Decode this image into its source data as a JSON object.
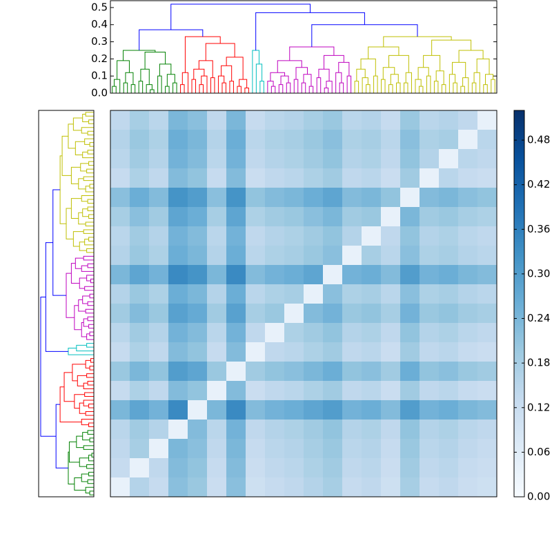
{
  "chart_data": {
    "type": "heatmap",
    "colormap": "Blues",
    "dendrogram": {
      "ylim": [
        0,
        0.54
      ],
      "yticks": [
        {
          "value": 0,
          "label": "0.0"
        },
        0.1,
        0.2,
        0.3,
        0.4,
        0.5
      ],
      "link_color": "#0000ff",
      "tree": [
        0.52,
        [
          0.37,
          {
            "color": "#008000",
            "tree": [
              0.25,
              [
                0.19,
                [
                  0.08,
                  [
                    0.04,
                    0,
                    0
                  ],
                  0
                ],
                [
                  0.12,
                  [
                    0.06,
                    0,
                    0
                  ],
                  [
                    0.05,
                    0,
                    0
                  ]
                ]
              ],
              [
                0.24,
                [
                  0.14,
                  [
                    0.07,
                    0,
                    0
                  ],
                  [
                    0.05,
                    0,
                    [
                      0.02,
                      0,
                      0
                    ]
                  ]
                ],
                [
                  0.17,
                  [
                    0.1,
                    0,
                    0
                  ],
                  [
                    0.11,
                    [
                      0.04,
                      0,
                      0
                    ],
                    [
                      0.06,
                      0,
                      0
                    ]
                  ]
                ]
              ]
            ]
          },
          {
            "color": "#ff0000",
            "tree": [
              0.33,
              [
                0.12,
                [
                  0.05,
                  0,
                  0
                ],
                0
              ],
              [
                0.29,
                [
                  0.19,
                  [
                    0.14,
                    [
                      0.08,
                      0,
                      0
                    ],
                    [
                      0.1,
                      [
                        0.05,
                        0,
                        0
                      ],
                      0
                    ]
                  ],
                  [
                    0.09,
                    0,
                    0
                  ]
                ],
                [
                  0.21,
                  [
                    0.16,
                    [
                      0.1,
                      0,
                      [
                        0.06,
                        0,
                        0
                      ]
                    ],
                    [
                      0.07,
                      0,
                      0
                    ]
                  ],
                  [
                    0.08,
                    [
                      0.04,
                      0,
                      0
                    ],
                    [
                      0.03,
                      0,
                      0
                    ]
                  ]
                ]
              ]
            ]
          }
        ],
        [
          0.47,
          {
            "color": "#00bfbf",
            "tree": [
              0.25,
              0,
              [
                0.17,
                0,
                [
                  0.07,
                  0,
                  0
                ]
              ]
            ]
          },
          [
            0.4,
            {
              "color": "#bf00bf",
              "tree": [
                0.27,
                [
                  0.19,
                  [
                    0.12,
                    [
                      0.07,
                      0,
                      [
                        0.04,
                        0,
                        0
                      ]
                    ],
                    [
                      0.1,
                      [
                        0.05,
                        0,
                        0
                      ],
                      [
                        0.06,
                        0,
                        0
                      ]
                    ]
                  ],
                  [
                    0.15,
                    [
                      0.08,
                      0,
                      0
                    ],
                    [
                      0.11,
                      [
                        0.06,
                        0,
                        0
                      ],
                      [
                        0.04,
                        0,
                        0
                      ]
                    ]
                  ]
                ],
                [
                  0.22,
                  [
                    0.14,
                    [
                      0.09,
                      0,
                      0
                    ],
                    [
                      0.07,
                      [
                        0.03,
                        0,
                        0
                      ],
                      0
                    ]
                  ],
                  [
                    0.18,
                    [
                      0.12,
                      0,
                      [
                        0.06,
                        0,
                        0
                      ]
                    ],
                    [
                      0.1,
                      0,
                      0
                    ]
                  ]
                ]
              ]
            },
            {
              "color": "#bfbf00",
              "tree": [
                0.33,
                [
                  0.27,
                  [
                    0.2,
                    [
                      0.14,
                      [
                        0.07,
                        0,
                        0
                      ],
                      [
                        0.09,
                        0,
                        [
                          0.05,
                          0,
                          0
                        ]
                      ]
                    ],
                    [
                      0.1,
                      0,
                      0
                    ]
                  ],
                  [
                    0.22,
                    [
                      0.15,
                      [
                        0.08,
                        0,
                        0
                      ],
                      [
                        0.11,
                        [
                          0.05,
                          0,
                          0
                        ],
                        [
                          0.06,
                          0,
                          0
                        ]
                      ]
                    ],
                    [
                      0.12,
                      [
                        0.06,
                        0,
                        0
                      ],
                      0
                    ]
                  ]
                ],
                [
                  0.31,
                  [
                    0.22,
                    [
                      0.15,
                      [
                        0.08,
                        0,
                        [
                          0.04,
                          0,
                          0
                        ]
                      ],
                      [
                        0.1,
                        0,
                        0
                      ]
                    ],
                    [
                      0.13,
                      [
                        0.07,
                        0,
                        0
                      ],
                      [
                        0.05,
                        0,
                        0
                      ]
                    ]
                  ],
                  [
                    0.25,
                    [
                      0.18,
                      [
                        0.11,
                        0,
                        [
                          0.06,
                          0,
                          0
                        ]
                      ],
                      [
                        0.09,
                        [
                          0.04,
                          0,
                          0
                        ],
                        0
                      ]
                    ],
                    [
                      0.2,
                      [
                        0.12,
                        [
                          0.06,
                          0,
                          0
                        ],
                        0
                      ],
                      [
                        0.11,
                        [
                          0.05,
                          0,
                          0
                        ],
                        [
                          0.08,
                          0,
                          0
                        ]
                      ]
                    ]
                  ]
                ]
              ]
            }
          ]
        ]
      ]
    },
    "matrix": [
      [
        0.14,
        0.18,
        0.15,
        0.24,
        0.22,
        0.14,
        0.24,
        0.13,
        0.15,
        0.16,
        0.18,
        0.2,
        0.15,
        0.16,
        0.13,
        0.2,
        0.15,
        0.16,
        0.14,
        0.04
      ],
      [
        0.16,
        0.2,
        0.17,
        0.26,
        0.24,
        0.16,
        0.26,
        0.15,
        0.17,
        0.18,
        0.2,
        0.22,
        0.17,
        0.18,
        0.15,
        0.22,
        0.17,
        0.18,
        0.04,
        0.15
      ],
      [
        0.15,
        0.19,
        0.16,
        0.25,
        0.23,
        0.15,
        0.25,
        0.14,
        0.16,
        0.17,
        0.19,
        0.21,
        0.16,
        0.17,
        0.14,
        0.21,
        0.16,
        0.04,
        0.15,
        0.14
      ],
      [
        0.13,
        0.17,
        0.14,
        0.23,
        0.21,
        0.13,
        0.23,
        0.12,
        0.14,
        0.15,
        0.17,
        0.19,
        0.14,
        0.15,
        0.12,
        0.19,
        0.04,
        0.15,
        0.13,
        0.12
      ],
      [
        0.22,
        0.26,
        0.23,
        0.32,
        0.3,
        0.22,
        0.32,
        0.21,
        0.23,
        0.24,
        0.26,
        0.28,
        0.23,
        0.24,
        0.21,
        0.04,
        0.23,
        0.24,
        0.22,
        0.21
      ],
      [
        0.18,
        0.22,
        0.19,
        0.28,
        0.26,
        0.18,
        0.28,
        0.17,
        0.19,
        0.2,
        0.22,
        0.24,
        0.19,
        0.2,
        0.04,
        0.24,
        0.19,
        0.2,
        0.18,
        0.17
      ],
      [
        0.15,
        0.19,
        0.16,
        0.25,
        0.23,
        0.15,
        0.25,
        0.14,
        0.16,
        0.17,
        0.19,
        0.21,
        0.16,
        0.04,
        0.14,
        0.21,
        0.16,
        0.17,
        0.15,
        0.14
      ],
      [
        0.16,
        0.2,
        0.17,
        0.26,
        0.24,
        0.16,
        0.26,
        0.15,
        0.17,
        0.18,
        0.2,
        0.22,
        0.04,
        0.18,
        0.15,
        0.22,
        0.17,
        0.18,
        0.16,
        0.15
      ],
      [
        0.24,
        0.28,
        0.25,
        0.34,
        0.32,
        0.24,
        0.34,
        0.23,
        0.25,
        0.26,
        0.28,
        0.04,
        0.25,
        0.26,
        0.23,
        0.3,
        0.25,
        0.26,
        0.24,
        0.23
      ],
      [
        0.16,
        0.2,
        0.17,
        0.26,
        0.24,
        0.16,
        0.26,
        0.15,
        0.17,
        0.18,
        0.04,
        0.22,
        0.17,
        0.18,
        0.15,
        0.22,
        0.17,
        0.18,
        0.16,
        0.15
      ],
      [
        0.19,
        0.23,
        0.2,
        0.29,
        0.27,
        0.19,
        0.29,
        0.18,
        0.2,
        0.04,
        0.23,
        0.25,
        0.2,
        0.21,
        0.18,
        0.25,
        0.2,
        0.21,
        0.19,
        0.18
      ],
      [
        0.15,
        0.19,
        0.16,
        0.25,
        0.23,
        0.15,
        0.25,
        0.14,
        0.04,
        0.17,
        0.19,
        0.21,
        0.16,
        0.17,
        0.14,
        0.21,
        0.16,
        0.17,
        0.15,
        0.14
      ],
      [
        0.13,
        0.17,
        0.14,
        0.23,
        0.21,
        0.13,
        0.23,
        0.04,
        0.14,
        0.15,
        0.17,
        0.19,
        0.14,
        0.15,
        0.12,
        0.19,
        0.14,
        0.15,
        0.13,
        0.12
      ],
      [
        0.2,
        0.24,
        0.21,
        0.3,
        0.28,
        0.2,
        0.04,
        0.19,
        0.21,
        0.22,
        0.24,
        0.26,
        0.21,
        0.22,
        0.19,
        0.26,
        0.21,
        0.22,
        0.2,
        0.19
      ],
      [
        0.13,
        0.17,
        0.14,
        0.23,
        0.21,
        0.04,
        0.23,
        0.12,
        0.14,
        0.15,
        0.17,
        0.19,
        0.14,
        0.15,
        0.12,
        0.19,
        0.14,
        0.15,
        0.13,
        0.12
      ],
      [
        0.24,
        0.28,
        0.25,
        0.34,
        0.04,
        0.24,
        0.34,
        0.23,
        0.25,
        0.26,
        0.28,
        0.3,
        0.25,
        0.26,
        0.23,
        0.3,
        0.25,
        0.26,
        0.24,
        0.23
      ],
      [
        0.15,
        0.19,
        0.16,
        0.04,
        0.23,
        0.15,
        0.25,
        0.14,
        0.16,
        0.17,
        0.19,
        0.21,
        0.16,
        0.17,
        0.14,
        0.21,
        0.16,
        0.17,
        0.15,
        0.14
      ],
      [
        0.14,
        0.18,
        0.04,
        0.24,
        0.22,
        0.14,
        0.24,
        0.13,
        0.15,
        0.16,
        0.18,
        0.2,
        0.15,
        0.16,
        0.13,
        0.2,
        0.15,
        0.16,
        0.14,
        0.13
      ],
      [
        0.13,
        0.04,
        0.14,
        0.23,
        0.21,
        0.13,
        0.23,
        0.12,
        0.14,
        0.15,
        0.17,
        0.19,
        0.14,
        0.15,
        0.12,
        0.19,
        0.14,
        0.15,
        0.13,
        0.12
      ],
      [
        0.04,
        0.16,
        0.13,
        0.22,
        0.2,
        0.12,
        0.22,
        0.11,
        0.13,
        0.14,
        0.16,
        0.18,
        0.13,
        0.14,
        0.11,
        0.18,
        0.13,
        0.14,
        0.12,
        0.11
      ]
    ],
    "colorbar": {
      "lim": [
        0,
        0.52
      ],
      "ticks": [
        {
          "value": 0,
          "label": "0.00"
        },
        {
          "value": 0.06,
          "label": "0.06"
        },
        {
          "value": 0.12,
          "label": "0.12"
        },
        {
          "value": 0.18,
          "label": "0.18"
        },
        {
          "value": 0.24,
          "label": "0.24"
        },
        {
          "value": 0.3,
          "label": "0.30"
        },
        {
          "value": 0.36,
          "label": "0.36"
        },
        {
          "value": 0.42,
          "label": "0.42"
        },
        {
          "value": 0.48,
          "label": "0.48"
        }
      ]
    }
  }
}
